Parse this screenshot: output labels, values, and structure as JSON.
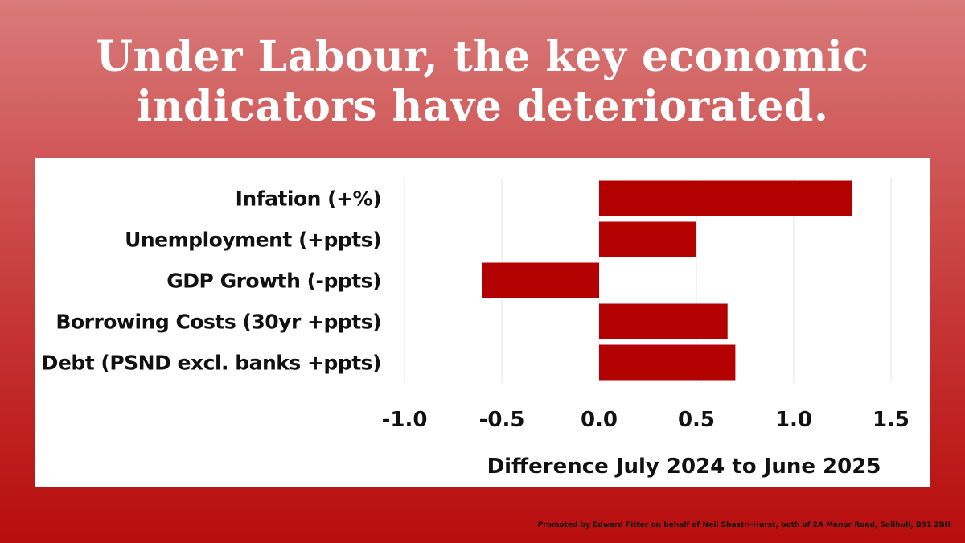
{
  "headline": "Under Labour, the key economic indicators have deteriorated.",
  "footer": "Promoted by Edward Fitter on behalf of Neil Shastri-Hurst, both of 2A Manor Road, Solihull, B91 2BH",
  "colors": {
    "bar": "#b30000",
    "grid": "#e6e6e6",
    "panel": "#ffffff",
    "text": "#111111"
  },
  "chart_data": {
    "type": "bar",
    "orientation": "horizontal",
    "categories": [
      "Infation (+%)",
      "Unemployment (+ppts)",
      "GDP Growth (-ppts)",
      "Borrowing Costs (30yr +ppts)",
      "Debt (PSND excl. banks +ppts)"
    ],
    "values": [
      1.3,
      0.5,
      -0.6,
      0.66,
      0.7
    ],
    "xlabel": "Difference July 2024 to June 2025",
    "ylabel": "",
    "xlim": [
      -1.0,
      1.5
    ],
    "xticks": [
      -1.0,
      -0.5,
      0.0,
      0.5,
      1.0,
      1.5
    ],
    "xtick_labels": [
      "-1.0",
      "-0.5",
      "0.0",
      "0.5",
      "1.0",
      "1.5"
    ],
    "grid": true,
    "legend": "none"
  }
}
